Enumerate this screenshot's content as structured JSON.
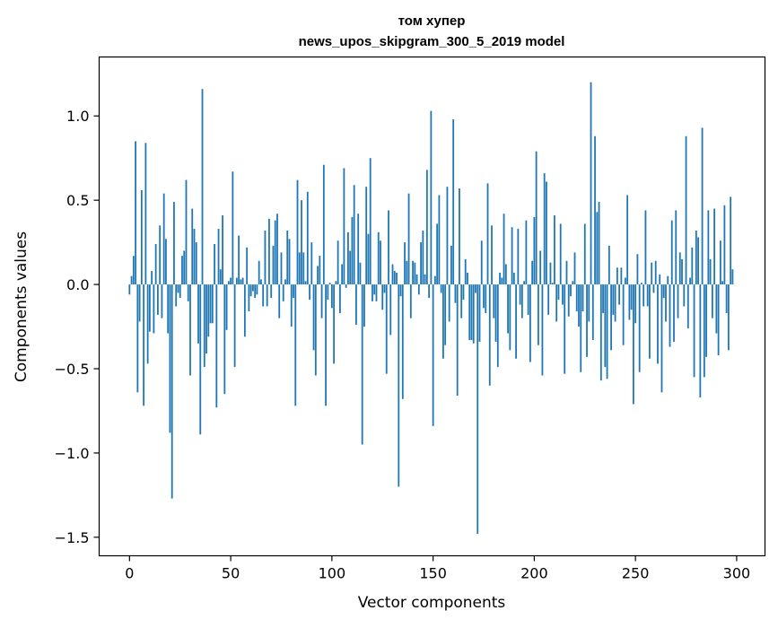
{
  "chart_data": {
    "type": "bar",
    "title_line1": "том хупер",
    "title_line2": "news_upos_skipgram_300_5_2019 model",
    "xlabel": "Vector components",
    "ylabel": "Components values",
    "xlim": [
      -15,
      314
    ],
    "ylim": [
      -1.61,
      1.35
    ],
    "x_ticks": [
      0,
      50,
      100,
      150,
      200,
      250,
      300
    ],
    "x_tick_labels": [
      "0",
      "50",
      "100",
      "150",
      "200",
      "250",
      "300"
    ],
    "y_ticks": [
      -1.5,
      -1.0,
      -0.5,
      0.0,
      0.5,
      1.0
    ],
    "y_tick_labels": [
      "−1.5",
      "−1.0",
      "−0.5",
      "0.0",
      "0.5",
      "1.0"
    ],
    "grid": false,
    "bar_color": "#1f77b4",
    "values": [
      -0.06,
      0.05,
      0.17,
      0.85,
      -0.64,
      -0.22,
      0.56,
      -0.72,
      0.84,
      -0.47,
      -0.28,
      0.08,
      -0.29,
      0.24,
      -0.18,
      0.35,
      -0.2,
      0.54,
      0.27,
      -0.29,
      -0.88,
      -1.27,
      0.49,
      -0.13,
      -0.05,
      -0.08,
      0.17,
      0.2,
      0.62,
      -0.1,
      -0.54,
      0.45,
      0.33,
      0.25,
      -0.35,
      -0.89,
      1.16,
      -0.49,
      -0.41,
      -0.31,
      -0.23,
      -0.23,
      0.24,
      -0.73,
      0.33,
      0.09,
      0.41,
      -0.65,
      -0.27,
      0.02,
      0.04,
      0.67,
      -0.49,
      0.04,
      0.29,
      0.03,
      0.04,
      -0.31,
      0.22,
      -0.16,
      -0.07,
      -0.04,
      -0.08,
      -0.06,
      0.14,
      0.03,
      -0.13,
      0.32,
      -0.13,
      0.39,
      -0.08,
      0.23,
      0.38,
      0.42,
      -0.2,
      0.19,
      -0.1,
      0.03,
      0.32,
      0.27,
      -0.25,
      -0.08,
      -0.72,
      0.62,
      0.19,
      0.5,
      0.19,
      0.02,
      0.55,
      -0.09,
      0.25,
      -0.39,
      -0.54,
      0.11,
      0.17,
      -0.2,
      0.71,
      -0.72,
      -0.09,
      0.01,
      -0.14,
      -0.47,
      0.02,
      0.26,
      -0.17,
      0.12,
      0.69,
      -0.02,
      0.31,
      0.2,
      0.4,
      0.59,
      -0.24,
      0.42,
      0.13,
      -0.95,
      -0.25,
      0.58,
      0.3,
      0.75,
      -0.1,
      -0.06,
      -0.1,
      0.31,
      0.26,
      -0.15,
      -0.05,
      -0.53,
      0.44,
      -0.3,
      0.12,
      0.08,
      0.07,
      -1.2,
      -0.07,
      -0.68,
      0.25,
      0.14,
      0.54,
      -0.2,
      0.14,
      0.13,
      0.06,
      -0.06,
      0.25,
      0.32,
      0.06,
      0.68,
      -0.08,
      1.03,
      -0.84,
      0.05,
      0.36,
      0.53,
      -0.05,
      -0.44,
      -0.36,
      0.58,
      -0.22,
      0.23,
      0.98,
      -0.11,
      -0.66,
      0.57,
      -0.2,
      -0.09,
      0.15,
      0.07,
      -0.33,
      -0.33,
      -0.35,
      -0.05,
      -1.48,
      -0.34,
      0.26,
      -0.14,
      -0.17,
      0.6,
      -0.6,
      0.35,
      -0.2,
      -0.34,
      -0.49,
      0.07,
      0.04,
      0.42,
      0.12,
      -0.29,
      -0.39,
      0.34,
      0.07,
      -0.44,
      0.33,
      -0.12,
      -0.2,
      0.02,
      0.38,
      -0.18,
      -0.46,
      0.14,
      0.4,
      0.79,
      -0.36,
      0.2,
      -0.54,
      0.66,
      0.61,
      -0.18,
      0.13,
      0.01,
      0.41,
      -0.22,
      -0.09,
      0.36,
      -0.12,
      -0.53,
      0.14,
      -0.19,
      -0.07,
      0.02,
      0.19,
      -0.16,
      -0.25,
      -0.52,
      -0.16,
      0.36,
      -0.43,
      -0.22,
      1.2,
      -0.33,
      0.88,
      0.43,
      0.49,
      -0.57,
      -0.17,
      -0.49,
      -0.56,
      0.23,
      -0.39,
      -0.18,
      -0.22,
      0.1,
      -0.12,
      0.1,
      -0.36,
      0.04,
      0.53,
      -0.21,
      -0.15,
      -0.71,
      -0.23,
      0.18,
      -0.52,
      0.01,
      -0.13,
      0.44,
      -0.13,
      -0.44,
      0.13,
      -0.05,
      0.14,
      -0.47,
      0.06,
      -0.64,
      -0.08,
      -0.22,
      0.05,
      -0.37,
      0.38,
      -0.34,
      0.44,
      -0.2,
      0.19,
      0.15,
      -0.13,
      0.88,
      -0.26,
      0.04,
      0.22,
      -0.55,
      0.32,
      0.28,
      -0.67,
      0.93,
      -0.55,
      -0.43,
      0.44,
      0.15,
      -0.2,
      0.45,
      -0.29,
      -0.42,
      0.26,
      0.02,
      0.47,
      -0.17,
      -0.39,
      0.52,
      0.09
    ]
  }
}
